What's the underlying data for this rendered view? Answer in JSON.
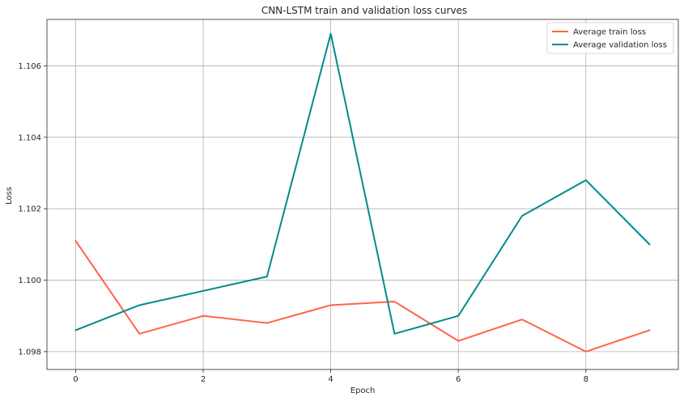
{
  "chart_data": {
    "type": "line",
    "title": "CNN-LSTM train and validation loss curves",
    "xlabel": "Epoch",
    "ylabel": "Loss",
    "xlim": [
      -0.45,
      9.45
    ],
    "ylim": [
      1.0975,
      1.1073
    ],
    "xticks": [
      0,
      2,
      4,
      6,
      8
    ],
    "yticks": [
      1.098,
      1.1,
      1.102,
      1.104,
      1.106
    ],
    "ytick_labels": [
      "1.098",
      "1.100",
      "1.102",
      "1.104",
      "1.106"
    ],
    "grid": true,
    "legend_position": "top-right",
    "x": [
      0,
      1,
      2,
      3,
      4,
      5,
      6,
      7,
      8,
      9
    ],
    "series": [
      {
        "name": "Average train loss",
        "color": "#ff6347",
        "values": [
          1.1011,
          1.0985,
          1.099,
          1.0988,
          1.0993,
          1.0994,
          1.0983,
          1.0989,
          1.098,
          1.0986
        ]
      },
      {
        "name": "Average validation loss",
        "color": "#008b8b",
        "values": [
          1.0986,
          1.0993,
          1.0997,
          1.1001,
          1.1069,
          1.0985,
          1.099,
          1.1018,
          1.1028,
          1.101
        ]
      }
    ]
  }
}
